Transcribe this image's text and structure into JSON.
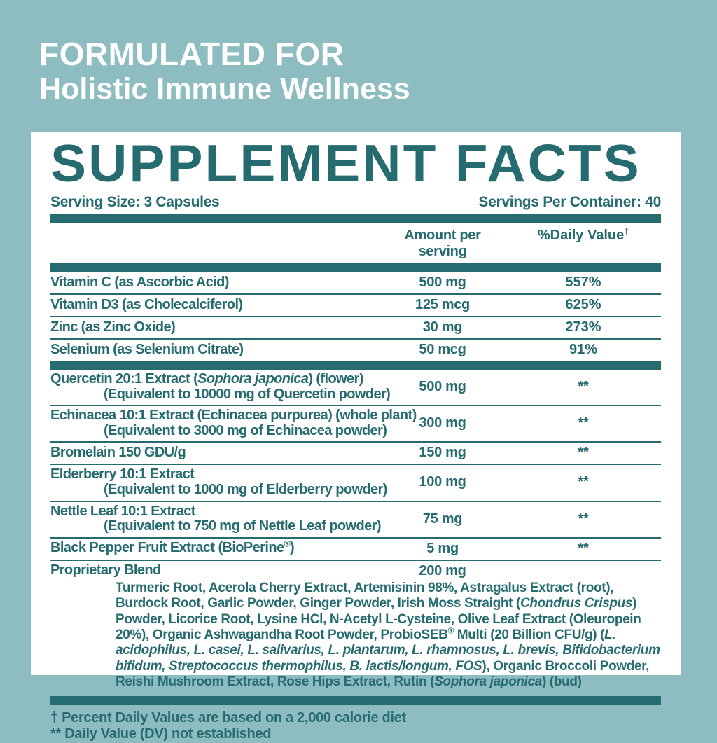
{
  "header": {
    "line1": "FORMULATED FOR",
    "line2": "Holistic Immune Wellness"
  },
  "panel": {
    "title": "SUPPLEMENT FACTS",
    "serving_size": "Serving Size: 3 Capsules",
    "servings_per_container": "Servings Per Container: 40",
    "columns": {
      "amount": "Amount per serving",
      "daily_value": "%Daily Value",
      "daily_value_sup": "†"
    },
    "sections": [
      {
        "rows": [
          {
            "name": [
              {
                "t": "Vitamin C (as Ascorbic Acid)"
              }
            ],
            "amount": "500 mg",
            "dv": "557%"
          },
          {
            "name": [
              {
                "t": "Vitamin D3 (as Cholecalciferol)"
              }
            ],
            "amount": "125 mcg",
            "dv": "625%"
          },
          {
            "name": [
              {
                "t": "Zinc (as Zinc Oxide)"
              }
            ],
            "amount": "30 mg",
            "dv": "273%"
          },
          {
            "name": [
              {
                "t": "Selenium (as Selenium Citrate)"
              }
            ],
            "amount": "50 mcg",
            "dv": "91%"
          }
        ]
      },
      {
        "rows": [
          {
            "name": [
              {
                "t": "Quercetin 20:1 Extract ("
              },
              {
                "t": "Sophora japonica",
                "i": true
              },
              {
                "t": ") (flower)"
              }
            ],
            "sub": [
              {
                "t": "(Equivalent to 10000 mg of Quercetin powder)"
              }
            ],
            "amount": "500 mg",
            "dv": "**"
          },
          {
            "name": [
              {
                "t": "Echinacea 10:1 Extract (Echinacea purpurea) (whole plant)"
              }
            ],
            "sub": [
              {
                "t": "(Equivalent to 3000 mg of Echinacea powder)"
              }
            ],
            "amount": "300 mg",
            "dv": "**"
          },
          {
            "name": [
              {
                "t": "Bromelain 150 GDU/g"
              }
            ],
            "amount": "150 mg",
            "dv": "**"
          },
          {
            "name": [
              {
                "t": "Elderberry 10:1 Extract"
              }
            ],
            "sub": [
              {
                "t": "(Equivalent to 1000 mg of Elderberry powder)"
              }
            ],
            "amount": "100 mg",
            "dv": "**"
          },
          {
            "name": [
              {
                "t": "Nettle Leaf 10:1 Extract"
              }
            ],
            "sub": [
              {
                "t": "(Equivalent to 750 mg of Nettle Leaf powder)"
              }
            ],
            "amount": "75 mg",
            "dv": "**"
          },
          {
            "name": [
              {
                "t": "Black Pepper Fruit Extract (BioPerine"
              },
              {
                "t": "®",
                "s": true
              },
              {
                "t": ")"
              }
            ],
            "amount": "5 mg",
            "dv": "**"
          },
          {
            "name": [
              {
                "t": "Proprietary Blend"
              }
            ],
            "amount": "200 mg",
            "dv": "",
            "blend": [
              {
                "t": "Turmeric Root, Acerola Cherry Extract, Artemisinin 98%, Astragalus Extract (root), Burdock Root, Garlic Powder, Ginger Powder, Irish Moss Straight ("
              },
              {
                "t": "Chondrus Crispus",
                "i": true
              },
              {
                "t": ") Powder, Licorice Root, Lysine HCl, N-Acetyl L-Cysteine, Olive Leaf Extract (Oleuropein 20%), Organic Ashwagandha Root Powder, ProbioSEB"
              },
              {
                "t": "®",
                "s": true
              },
              {
                "t": " Multi (20 Billion CFU/g) ("
              },
              {
                "t": "L. acidophilus, L. casei, L. salivarius, L. plantarum, L. rhamnosus, L. brevis, Bifidobacterium bifidum, Streptococcus thermophilus, B. lactis/longum, FOS",
                "i": true
              },
              {
                "t": "), Organic Broccoli Powder, Reishi Mushroom Extract, Rose Hips Extract, Rutin ("
              },
              {
                "t": "Sophora japonica",
                "i": true
              },
              {
                "t": ") (bud)"
              }
            ]
          }
        ]
      }
    ],
    "footnotes": [
      "† Percent Daily Values are based on a 2,000 calorie diet",
      "** Daily Value (DV) not established"
    ]
  },
  "colors": {
    "background": "#8DBDC1",
    "teal_dark": "#256B70",
    "panel": "#FFFFFF",
    "header_text": "#FFFFFF"
  }
}
